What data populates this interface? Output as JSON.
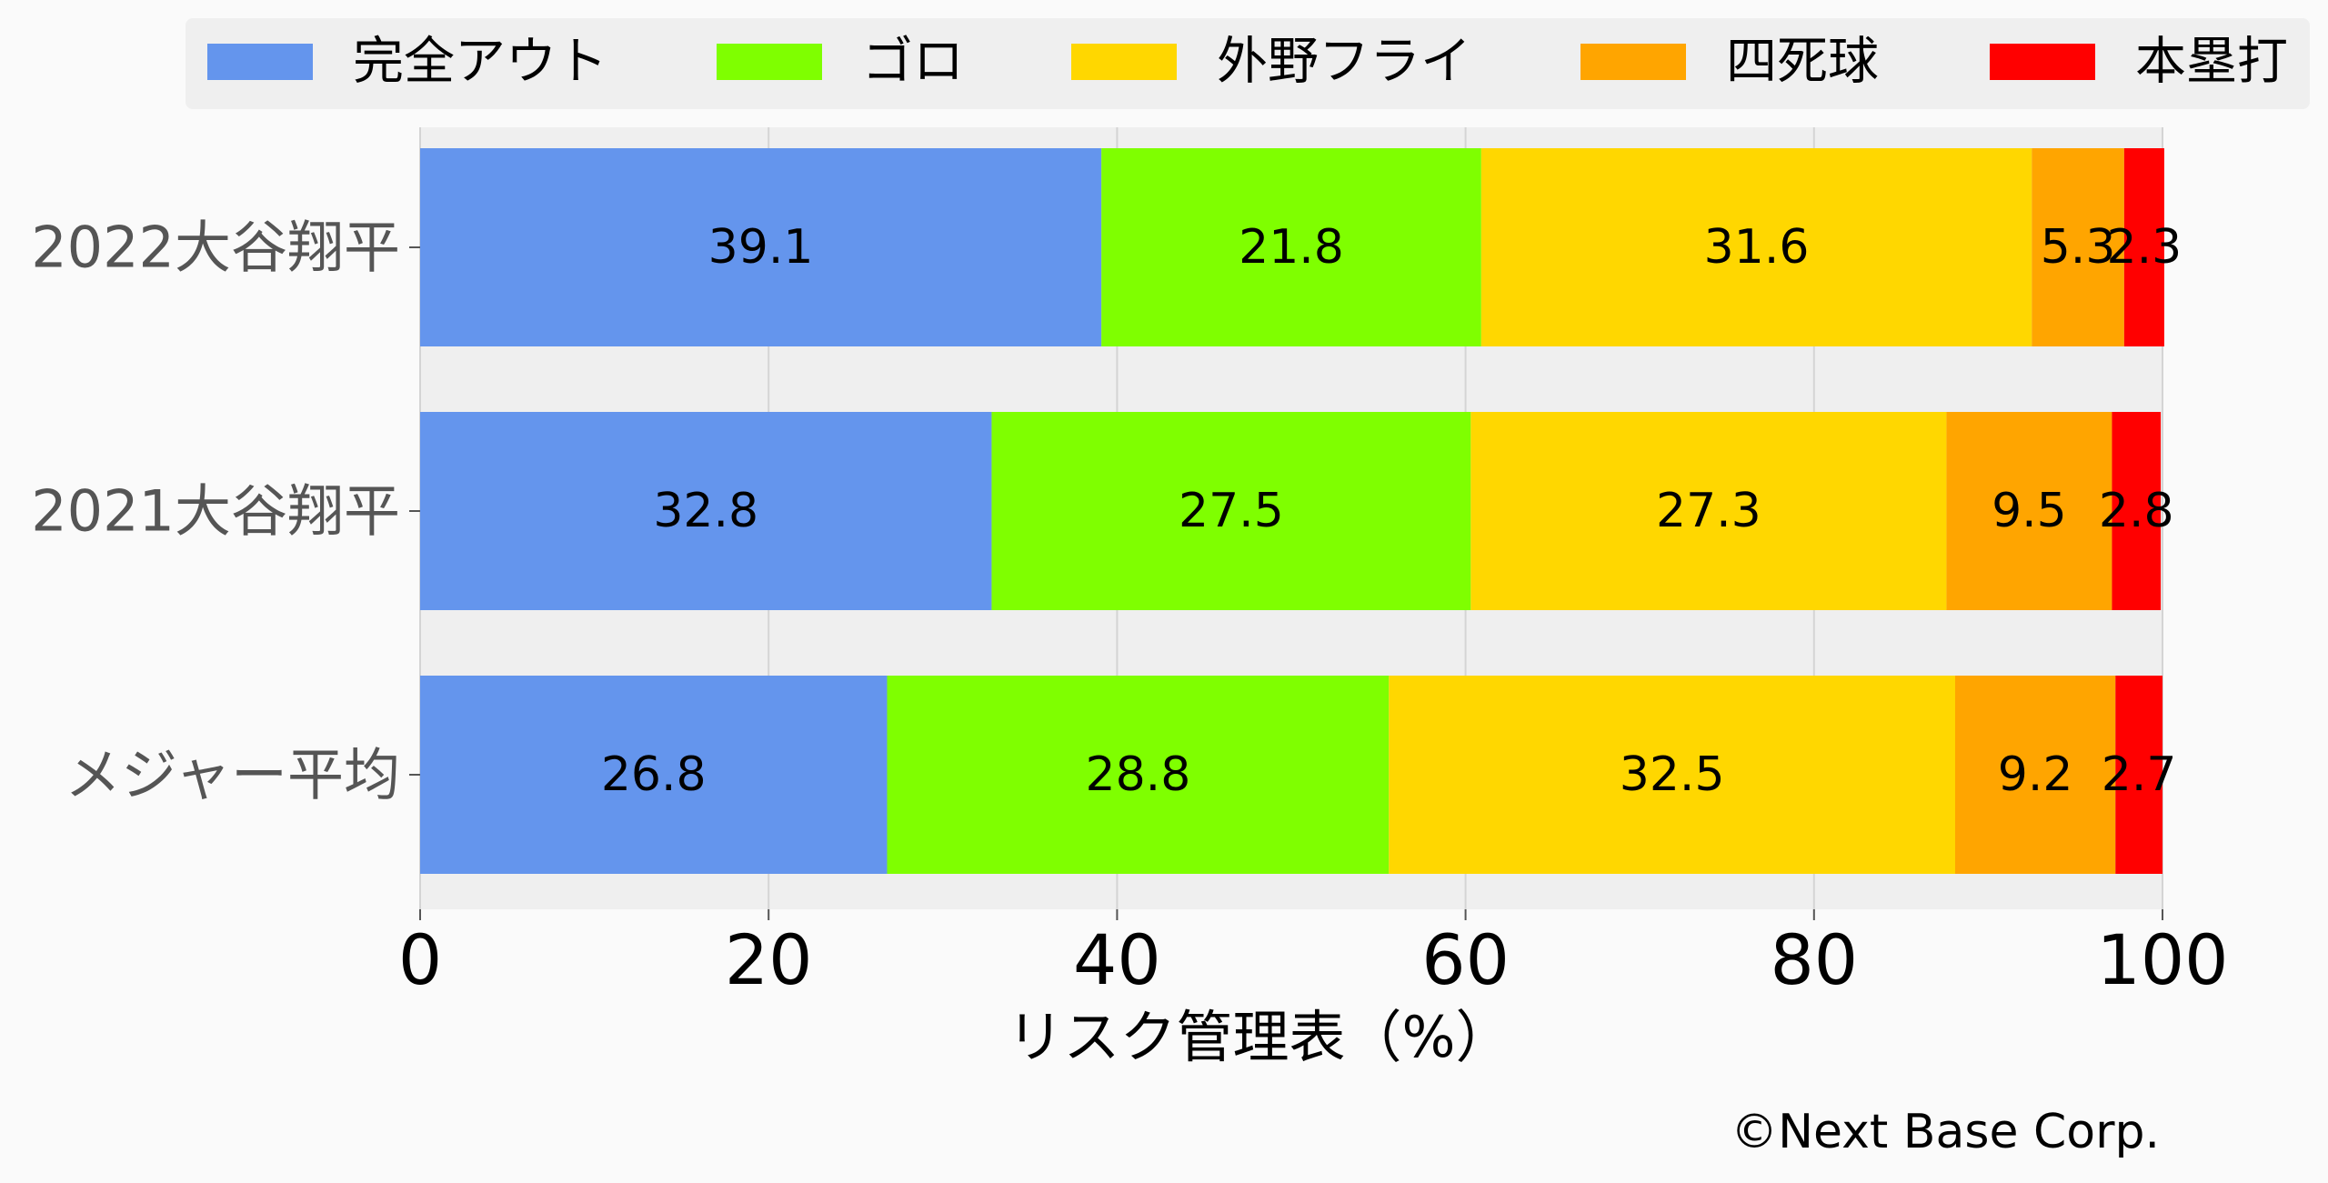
{
  "chart_data": {
    "type": "bar",
    "orientation": "horizontal",
    "stacked": true,
    "title": "",
    "xlabel": "リスク管理表（%）",
    "ylabel": "",
    "xlim": [
      0,
      100
    ],
    "x_ticks": [
      "0",
      "20",
      "40",
      "60",
      "80",
      "100"
    ],
    "grid": true,
    "legend_position": "top",
    "categories": [
      "2022大谷翔平",
      "2021大谷翔平",
      "メジャー平均"
    ],
    "series": [
      {
        "name": "完全アウト",
        "color": "#6495ed",
        "values": [
          39.1,
          32.8,
          26.8
        ]
      },
      {
        "name": "ゴロ",
        "color": "#7fff00",
        "values": [
          21.8,
          27.5,
          28.8
        ]
      },
      {
        "name": "外野フライ",
        "color": "#ffd700",
        "values": [
          31.6,
          27.3,
          32.5
        ]
      },
      {
        "name": "四死球",
        "color": "#ffa500",
        "values": [
          5.3,
          9.5,
          9.2
        ]
      },
      {
        "name": "本塁打",
        "color": "#ff0000",
        "values": [
          2.3,
          2.8,
          2.7
        ]
      }
    ],
    "data_labels": [
      [
        "39.1",
        "21.8",
        "31.6",
        "5.3",
        "2.3"
      ],
      [
        "32.8",
        "27.5",
        "27.3",
        "9.5",
        "2.8"
      ],
      [
        "26.8",
        "28.8",
        "32.5",
        "9.2",
        "2.7"
      ]
    ]
  },
  "footer": {
    "copyright": "©Next Base Corp."
  }
}
